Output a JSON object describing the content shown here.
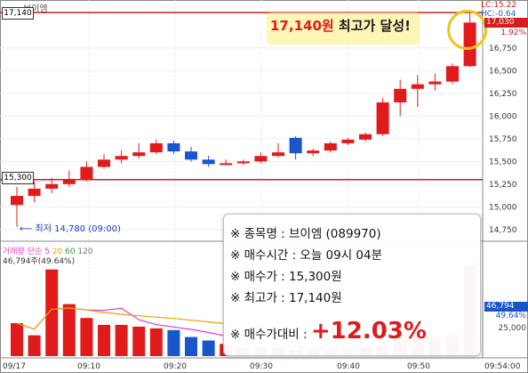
{
  "header": {
    "stock_name": "브이엠",
    "lc_label": "LC:15.22",
    "hc_label": "HC:-0.64"
  },
  "annotation": {
    "price_text": "17,140원",
    "suffix_text": " 최고가 달성!"
  },
  "price_pills": {
    "top": "17,140",
    "mid": "15,300"
  },
  "low_label": "최저 14,780 (09:00)",
  "price_axis": {
    "ticks": [
      "16,750",
      "16,500",
      "16,250",
      "16,000",
      "15,750",
      "15,500",
      "15,250",
      "15,000",
      "14,750"
    ],
    "tag_red": "17,030",
    "tag_pct": "1.92%"
  },
  "volume_panel": {
    "legend": {
      "title": "거래량",
      "ma_label": "단순",
      "ma5": "5",
      "ma20": "20",
      "ma60": "60",
      "ma120": "120"
    },
    "sub": "46,794주(49.64%)",
    "tag_value": "46,794",
    "tag_pct": "49.64%",
    "axis_label": "25,000"
  },
  "x_axis": {
    "labels": [
      "09/17",
      "09:10",
      "09:20",
      "09:30",
      "09:40",
      "09:50",
      "09:54:00"
    ]
  },
  "info_card": {
    "name_row": "※ 종목명 : 브이엠 (089970)",
    "time_row": "※ 매수시간 : 오늘 09시 04분",
    "buy_row": "※ 매수가 : 15,300원",
    "high_row": "※ 최고가 : 17,140원",
    "diff_label": "※ 매수가대비 : ",
    "diff_value": "+12.03%"
  },
  "colors": {
    "up": "#e11b1b",
    "down": "#1a55cc",
    "ma5": "#e040c8",
    "ma20": "#f0a000",
    "ma60": "#2aa02a",
    "line": "#d21e1e"
  },
  "chart_data": {
    "type": "candlestick",
    "x": [
      "09:00",
      "09:02",
      "09:04",
      "09:06",
      "09:08",
      "09:10",
      "09:12",
      "09:14",
      "09:16",
      "09:18",
      "09:20",
      "09:22",
      "09:24",
      "09:26",
      "09:28",
      "09:30",
      "09:32",
      "09:34",
      "09:36",
      "09:38",
      "09:40",
      "09:42",
      "09:44",
      "09:46",
      "09:48",
      "09:50",
      "09:52"
    ],
    "open": [
      15020,
      15120,
      15200,
      15250,
      15300,
      15440,
      15520,
      15560,
      15600,
      15700,
      15610,
      15520,
      15470,
      15480,
      15500,
      15560,
      15760,
      15590,
      15620,
      15700,
      15740,
      15800,
      16150,
      16300,
      16350,
      16380,
      16550
    ],
    "close": [
      15120,
      15200,
      15250,
      15300,
      15440,
      15520,
      15560,
      15600,
      15700,
      15610,
      15520,
      15470,
      15480,
      15500,
      15560,
      15600,
      15590,
      15620,
      15700,
      15740,
      15800,
      16150,
      16300,
      16350,
      16380,
      16550,
      17030
    ],
    "high": [
      15220,
      15280,
      15320,
      15400,
      15500,
      15580,
      15620,
      15700,
      15740,
      15730,
      15660,
      15560,
      15520,
      15520,
      15600,
      15700,
      15780,
      15640,
      15720,
      15760,
      15820,
      16200,
      16400,
      16450,
      16470,
      16580,
      17140
    ],
    "low": [
      14780,
      15050,
      15150,
      15220,
      15280,
      15420,
      15480,
      15530,
      15580,
      15580,
      15500,
      15440,
      15460,
      15460,
      15480,
      15540,
      15520,
      15560,
      15600,
      15680,
      15720,
      15780,
      16000,
      16100,
      16280,
      16350,
      16540
    ],
    "volume": [
      9500,
      6000,
      25000,
      15000,
      11000,
      9000,
      9000,
      8500,
      8000,
      7500,
      5500,
      4500,
      3500,
      2500,
      2500,
      2500,
      2000,
      2000,
      1500,
      2000,
      2500,
      3000,
      4500,
      5500,
      5500,
      6000,
      26000
    ],
    "horizontal_lines": [
      17140,
      15300
    ],
    "ylim": [
      14650,
      17200
    ]
  }
}
